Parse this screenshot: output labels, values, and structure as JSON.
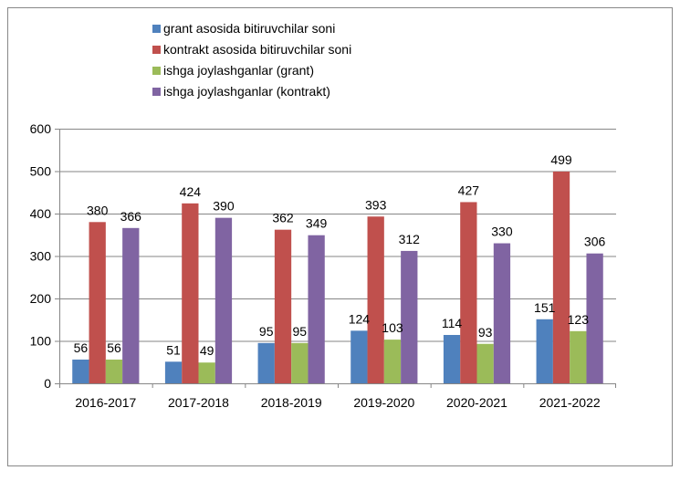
{
  "chart_data": {
    "type": "bar",
    "title": "",
    "xlabel": "",
    "ylabel": "",
    "ylim": [
      0,
      600
    ],
    "yticks": [
      0,
      100,
      200,
      300,
      400,
      500,
      600
    ],
    "grid": true,
    "legend_position": "top",
    "categories": [
      "2016-2017",
      "2017-2018",
      "2018-2019",
      "2019-2020",
      "2020-2021",
      "2021-2022"
    ],
    "series": [
      {
        "name": "grant asosida bitiruvchilar soni",
        "color": "#4F81BD",
        "values": [
          56,
          51,
          95,
          124,
          114,
          151
        ]
      },
      {
        "name": "kontrakt asosida bitiruvchilar soni",
        "color": "#C0504D",
        "values": [
          380,
          424,
          362,
          393,
          427,
          499
        ]
      },
      {
        "name": "ishga joylashganlar (grant)",
        "color": "#9BBB59",
        "values": [
          56,
          49,
          95,
          103,
          93,
          123
        ]
      },
      {
        "name": "ishga joylashganlar (kontrakt)",
        "color": "#8064A2",
        "values": [
          366,
          390,
          349,
          312,
          330,
          306
        ]
      }
    ]
  }
}
